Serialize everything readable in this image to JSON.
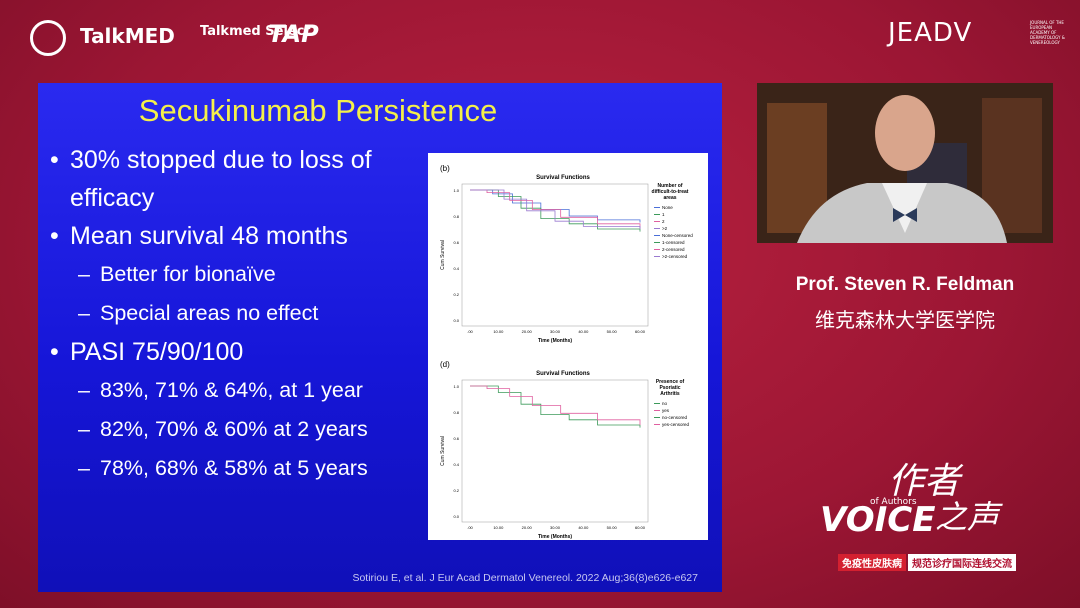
{
  "header": {
    "logos": [
      "TalkMED",
      "Talkmed Select",
      "TAP",
      "JEADV"
    ],
    "jeadv_subtitle": "JOURNAL OF THE EUROPEAN ACADEMY OF DERMATOLOGY & VENEREOLOGY"
  },
  "slide": {
    "title": "Secukinumab Persistence",
    "bullets": [
      {
        "text": "30% stopped due to loss of efficacy",
        "sub": []
      },
      {
        "text": "Mean survival 48 months",
        "sub": [
          "Better for bionaïve",
          "Special areas no effect"
        ]
      },
      {
        "text": "PASI 75/90/100",
        "sub": [
          "83%, 71% & 64%, at 1 year",
          "82%, 70% & 60% at 2 years",
          "78%, 68% & 58% at 5 years"
        ]
      }
    ],
    "figure": {
      "panels": [
        {
          "label": "(b)",
          "title": "Survival Functions",
          "ylabel": "Cum Survival",
          "xlabel": "Time (Months)",
          "yticks": [
            "0.0",
            "0.2",
            "0.4",
            "0.6",
            "0.8",
            "1.0"
          ],
          "xticks": [
            ".00",
            "10.00",
            "20.00",
            "30.00",
            "40.00",
            "50.00",
            "60.00"
          ],
          "legend_title": "Number of difficult-to-treat areas",
          "legend": [
            "None",
            "1",
            "2",
            ">2",
            "None-censored",
            "1-censored",
            "2-censored",
            ">2-censored"
          ]
        },
        {
          "label": "(d)",
          "title": "Survival Functions",
          "ylabel": "Cum Survival",
          "xlabel": "Time (Months)",
          "yticks": [
            "0.0",
            "0.2",
            "0.4",
            "0.6",
            "0.8",
            "1.0"
          ],
          "xticks": [
            ".00",
            "10.00",
            "20.00",
            "30.00",
            "40.00",
            "50.00",
            "60.00"
          ],
          "legend_title": "Presence of Psoriatic Arthritis",
          "legend": [
            "no",
            "yes",
            "no-censored",
            "yes-censored"
          ]
        }
      ]
    },
    "citation": "Sotiriou E, et al. J Eur Acad Dermatol Venereol. 2022 Aug;36(8)e626-e627"
  },
  "speaker": {
    "name": "Prof. Steven R. Feldman",
    "affiliation": "维克森林大学医学院"
  },
  "brand": {
    "voice": "VOICE",
    "of_authors": "of Authors",
    "cn_title": [
      "作者",
      "之声"
    ],
    "tagline": [
      "免疫性皮肤病",
      "规范诊疗国际连线交流"
    ]
  }
}
